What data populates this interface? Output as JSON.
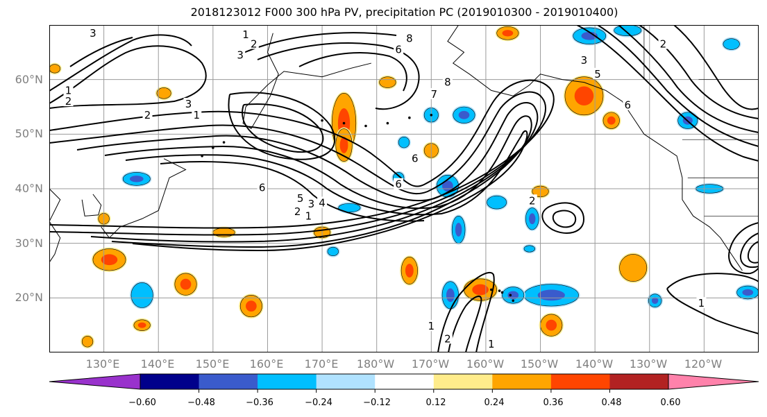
{
  "title": "2018123012 F000 300 hPa PV, precipitation PC (2019010300 - 2019010400)",
  "map": {
    "lat_labels": [
      "60°N",
      "50°N",
      "40°N",
      "30°N",
      "20°N"
    ],
    "lon_labels": [
      "130°E",
      "140°E",
      "150°E",
      "160°E",
      "170°E",
      "180°W",
      "170°W",
      "160°W",
      "150°W",
      "140°W",
      "130°W",
      "120°W"
    ],
    "grid": true,
    "contour_labels": [
      {
        "text": "1",
        "lon": 156,
        "lat": 68.2
      },
      {
        "text": "2",
        "lon": 157.5,
        "lat": 66.5
      },
      {
        "text": "3",
        "lon": 155,
        "lat": 64.5
      },
      {
        "text": "3",
        "lon": 128,
        "lat": 68.5
      },
      {
        "text": "1",
        "lon": 123.5,
        "lat": 58
      },
      {
        "text": "2",
        "lon": 123.5,
        "lat": 56
      },
      {
        "text": "3",
        "lon": 145.5,
        "lat": 55.5
      },
      {
        "text": "2",
        "lon": 138,
        "lat": 53.5
      },
      {
        "text": "1",
        "lon": 147,
        "lat": 53.5
      },
      {
        "text": "6",
        "lon": 159,
        "lat": 40.2
      },
      {
        "text": "5",
        "lon": 166,
        "lat": 38.2
      },
      {
        "text": "3",
        "lon": 168,
        "lat": 37.2
      },
      {
        "text": "4",
        "lon": 170,
        "lat": 37.4
      },
      {
        "text": "2",
        "lon": 165.5,
        "lat": 35.8
      },
      {
        "text": "1",
        "lon": 167.5,
        "lat": 35
      },
      {
        "text": "6",
        "lon": 184,
        "lat": 65.5
      },
      {
        "text": "8",
        "lon": 186,
        "lat": 67.5
      },
      {
        "text": "8",
        "lon": 193,
        "lat": 59.5
      },
      {
        "text": "7",
        "lon": 190.5,
        "lat": 57.3
      },
      {
        "text": "6",
        "lon": 184,
        "lat": 40.8
      },
      {
        "text": "6",
        "lon": 187,
        "lat": 45.5
      },
      {
        "text": "2",
        "lon": 208.5,
        "lat": 37.8
      },
      {
        "text": "1",
        "lon": 190,
        "lat": 14.8
      },
      {
        "text": "2",
        "lon": 193,
        "lat": 12.5
      },
      {
        "text": "1",
        "lon": 201,
        "lat": 11.5
      },
      {
        "text": "3",
        "lon": 218,
        "lat": 63.5
      },
      {
        "text": "5",
        "lon": 220.5,
        "lat": 61
      },
      {
        "text": "6",
        "lon": 226,
        "lat": 55.3
      },
      {
        "text": "2",
        "lon": 232.5,
        "lat": 66.5
      },
      {
        "text": "1",
        "lon": 239.5,
        "lat": 19
      }
    ]
  },
  "colorbar": {
    "ticks": [
      "−0.60",
      "−0.48",
      "−0.36",
      "−0.24",
      "−0.12",
      "0.12",
      "0.24",
      "0.36",
      "0.48",
      "0.60"
    ],
    "colors": [
      "#9932cc",
      "#00008b",
      "#3a5bcc",
      "#00bfff",
      "#b0e2ff",
      "#ffffff",
      "#ffec8b",
      "#ffa500",
      "#ff4500",
      "#b22222",
      "#ff82ab"
    ]
  }
}
